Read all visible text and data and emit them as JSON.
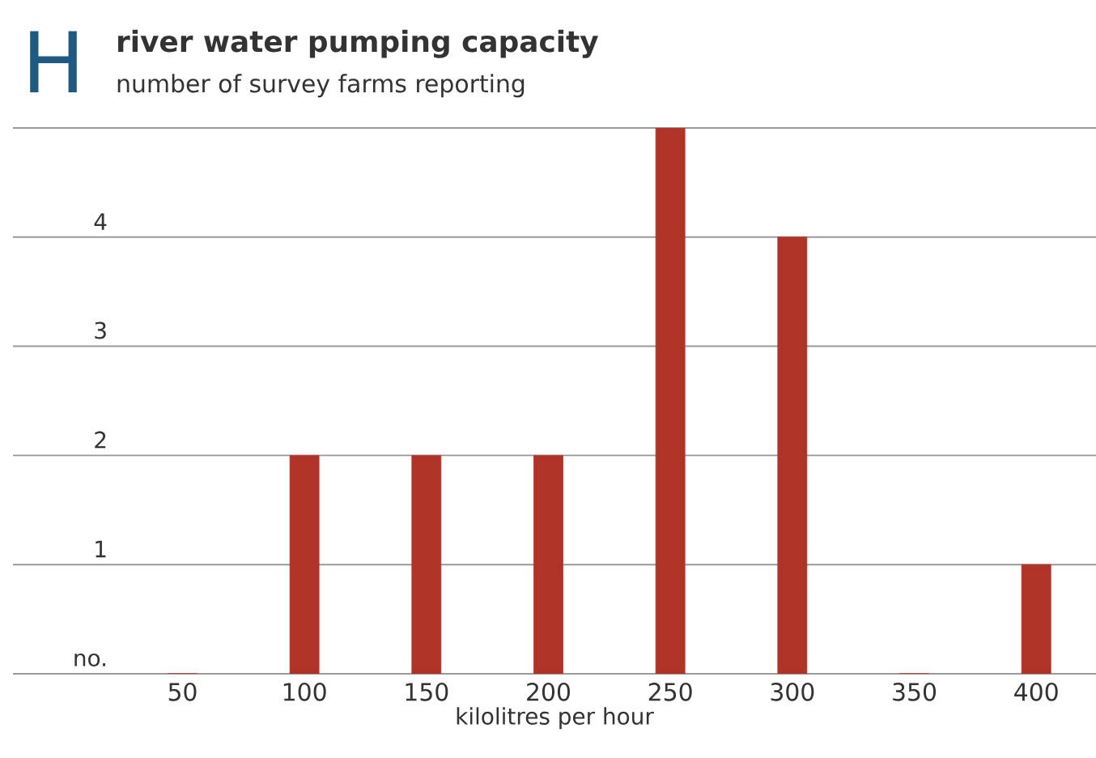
{
  "chart_data": {
    "type": "bar",
    "title": "river water pumping capacity",
    "subtitle": "number of survey farms reporting",
    "xlabel": "kilolitres per hour",
    "annotations": [
      "H"
    ],
    "categories": [
      "50",
      "100",
      "150",
      "200",
      "250",
      "300",
      "350",
      "400"
    ],
    "values": [
      0,
      2,
      2,
      2,
      5,
      4,
      0,
      1
    ],
    "color": "#b03328",
    "ylim": [
      0,
      5
    ],
    "yticks": [
      {
        "value": 0,
        "label": "no."
      },
      1,
      2,
      3,
      4,
      {
        "value": 5,
        "label": null
      }
    ],
    "grid": "y"
  }
}
